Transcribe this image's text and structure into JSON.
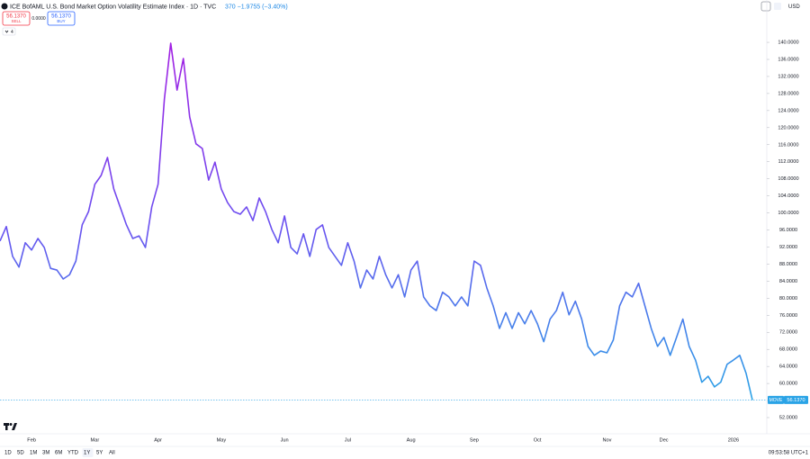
{
  "header": {
    "title": "ICE BofAML U.S. Bond Market Option Volatility Estimate Index · 1D · TVC",
    "change": "370 −1.9755 (−3.40%)",
    "currency": "USD"
  },
  "order_panel": {
    "sell_price": "56.1370",
    "sell_label": "SELL",
    "spread": "0.0000",
    "buy_price": "56.1370",
    "buy_label": "BUY",
    "indicator_count": "4"
  },
  "footer": {
    "ranges": [
      "1D",
      "5D",
      "1M",
      "3M",
      "6M",
      "YTD",
      "1Y",
      "5Y",
      "All"
    ],
    "active_range": "1Y",
    "clock": "09:53:58 UTC+1"
  },
  "chart_data": {
    "type": "line",
    "categories": [
      null,
      null,
      null,
      null,
      null,
      "Feb",
      null,
      null,
      null,
      null,
      null,
      null,
      null,
      null,
      null,
      "Mar",
      null,
      null,
      null,
      null,
      null,
      null,
      null,
      null,
      null,
      "Apr",
      null,
      null,
      null,
      null,
      null,
      null,
      null,
      null,
      null,
      "May",
      null,
      null,
      null,
      null,
      null,
      null,
      null,
      null,
      null,
      "Jun",
      null,
      null,
      null,
      null,
      null,
      null,
      null,
      null,
      null,
      "Jul",
      null,
      null,
      null,
      null,
      null,
      null,
      null,
      null,
      null,
      "Aug",
      null,
      null,
      null,
      null,
      null,
      null,
      null,
      null,
      null,
      "Sep",
      null,
      null,
      null,
      null,
      null,
      null,
      null,
      null,
      null,
      "Oct",
      null,
      null,
      null,
      null,
      null,
      null,
      null,
      null,
      null,
      null,
      "Nov",
      null,
      null,
      null,
      null,
      null,
      null,
      null,
      null,
      "Dec",
      null,
      null,
      null,
      null,
      null,
      null,
      null,
      null,
      null,
      null,
      "2026",
      null,
      null,
      null
    ],
    "series": [
      {
        "name": "MOVE",
        "colors": [
          "#a21fe3",
          "#6c4ff0",
          "#2aa3e6"
        ],
        "values": [
          93.4,
          96.8,
          89.8,
          87.3,
          93.0,
          91.3,
          94.0,
          91.9,
          87.0,
          86.6,
          84.5,
          85.5,
          88.7,
          97.2,
          100.3,
          106.7,
          108.8,
          113.0,
          105.6,
          101.4,
          97.2,
          94.0,
          94.6,
          91.9,
          101.4,
          106.7,
          126.7,
          139.8,
          128.8,
          136.2,
          122.5,
          116.2,
          115.1,
          107.7,
          111.9,
          105.6,
          102.4,
          100.3,
          99.7,
          101.4,
          98.2,
          103.5,
          100.3,
          96.1,
          93.0,
          99.3,
          91.9,
          90.4,
          95.1,
          89.8,
          96.1,
          97.2,
          91.9,
          89.8,
          87.7,
          93.0,
          88.7,
          82.4,
          86.6,
          84.5,
          89.8,
          85.5,
          82.4,
          85.5,
          80.3,
          86.6,
          88.7,
          80.3,
          78.2,
          77.1,
          81.4,
          80.3,
          78.2,
          80.3,
          78.2,
          88.7,
          87.7,
          82.4,
          78.2,
          72.9,
          76.6,
          72.9,
          76.6,
          74.0,
          77.1,
          74.0,
          69.8,
          75.1,
          77.1,
          81.4,
          76.1,
          79.3,
          75.1,
          68.7,
          66.6,
          67.6,
          67.2,
          70.2,
          78.2,
          81.4,
          80.3,
          83.5,
          78.2,
          72.9,
          68.7,
          70.8,
          66.6,
          70.8,
          75.1,
          68.7,
          65.5,
          60.3,
          61.7,
          59.2,
          60.3,
          64.5,
          65.5,
          66.6,
          62.4,
          56.137
        ],
        "last_label": "56.1370"
      }
    ],
    "ylim": [
      48.2,
      143.6
    ],
    "yticks": [
      {
        "value": 52,
        "label": "52.0000"
      },
      {
        "value": 56,
        "label": "56.0000"
      },
      {
        "value": 60,
        "label": "60.0000"
      },
      {
        "value": 64,
        "label": "64.0000"
      },
      {
        "value": 68,
        "label": "68.0000"
      },
      {
        "value": 72,
        "label": "72.0000"
      },
      {
        "value": 76,
        "label": "76.0000"
      },
      {
        "value": 80,
        "label": "80.0000"
      },
      {
        "value": 84,
        "label": "84.0000"
      },
      {
        "value": 88,
        "label": "88.0000"
      },
      {
        "value": 92,
        "label": "92.0000"
      },
      {
        "value": 96,
        "label": "96.0000"
      },
      {
        "value": 100,
        "label": "100.0000"
      },
      {
        "value": 104,
        "label": "104.0000"
      },
      {
        "value": 108,
        "label": "108.0000"
      },
      {
        "value": 112,
        "label": "112.0000"
      },
      {
        "value": 116,
        "label": "116.0000"
      },
      {
        "value": 120,
        "label": "120.0000"
      },
      {
        "value": 124,
        "label": "124.0000"
      },
      {
        "value": 128,
        "label": "128.0000"
      },
      {
        "value": 132,
        "label": "132.0000"
      },
      {
        "value": 136,
        "label": "136.0000"
      },
      {
        "value": 140,
        "label": "140.0000"
      }
    ],
    "grid": false,
    "last_price_line": true
  }
}
